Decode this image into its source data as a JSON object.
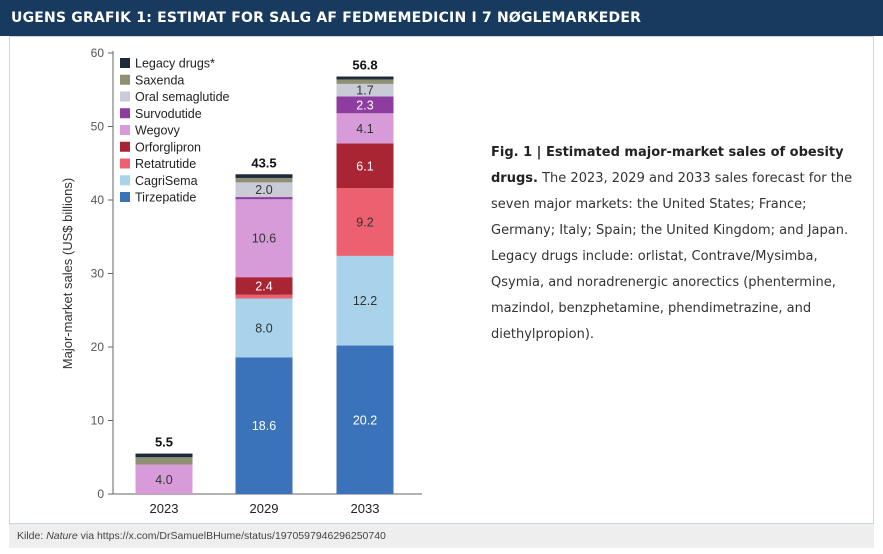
{
  "header": {
    "title": "UGENS GRAFIK 1: ESTIMAT FOR SALG AF FEDMEMEDICIN I 7 NØGLEMARKEDER"
  },
  "caption": {
    "title": "Fig. 1 | Estimated major-market sales of obesity drugs.",
    "body": "The 2023, 2029 and 2033 sales forecast for the seven major markets: the United States; France; Germany; Italy; Spain; the United Kingdom; and Japan. Legacy drugs include: orlistat, Contrave/Mysimba, Qsymia, and noradrenergic anorectics (phentermine, mazindol, benzphetamine, phendimetrazine, and diethylpropion)."
  },
  "footer": {
    "prefix": "Kilde:",
    "source": "Nature",
    "suffix": "via https://x.com/DrSamuelBHume/status/1970597946296250740"
  },
  "chart_data": {
    "type": "bar",
    "stacked": true,
    "title": "",
    "xlabel": "",
    "ylabel": "Major-market sales (US$ billions)",
    "ylim": [
      0,
      60
    ],
    "yticks": [
      0,
      10,
      20,
      30,
      40,
      50,
      60
    ],
    "grid": false,
    "legend_position": "top-left",
    "categories": [
      "2023",
      "2029",
      "2033"
    ],
    "totals": [
      5.5,
      43.5,
      56.8
    ],
    "total_labels": [
      "5.5",
      "43.5",
      "56.8"
    ],
    "series": [
      {
        "name": "Tirzepatide",
        "color": "#3a73b9",
        "label_color": "#ffffff",
        "values": [
          0.0,
          18.6,
          20.2
        ],
        "labels": [
          "",
          "18.6",
          "20.2"
        ]
      },
      {
        "name": "CagriSema",
        "color": "#a8d3ea",
        "label_color": "#333333",
        "values": [
          0.0,
          8.0,
          12.2
        ],
        "labels": [
          "",
          "8.0",
          "12.2"
        ]
      },
      {
        "name": "Retatrutide",
        "color": "#ec6070",
        "label_color": "#333333",
        "values": [
          0.0,
          0.5,
          9.2
        ],
        "labels": [
          "",
          "",
          "9.2"
        ]
      },
      {
        "name": "Orforglipron",
        "color": "#a92534",
        "label_color": "#ffffff",
        "values": [
          0.0,
          2.4,
          6.1
        ],
        "labels": [
          "",
          "2.4",
          "6.1"
        ]
      },
      {
        "name": "Wegovy",
        "color": "#d79bd9",
        "label_color": "#333333",
        "values": [
          4.0,
          10.6,
          4.1
        ],
        "labels": [
          "4.0",
          "10.6",
          "4.1"
        ]
      },
      {
        "name": "Survodutide",
        "color": "#8e3ca0",
        "label_color": "#ffffff",
        "values": [
          0.0,
          0.3,
          2.3
        ],
        "labels": [
          "",
          "",
          "2.3"
        ]
      },
      {
        "name": "Oral semaglutide",
        "color": "#c9cbd7",
        "label_color": "#333333",
        "values": [
          0.0,
          2.0,
          1.7
        ],
        "labels": [
          "",
          "2.0",
          "1.7"
        ]
      },
      {
        "name": "Saxenda",
        "color": "#8e8f73",
        "label_color": "#ffffff",
        "values": [
          1.0,
          0.6,
          0.6
        ],
        "labels": [
          "",
          "",
          ""
        ]
      },
      {
        "name": "Legacy drugs*",
        "color": "#1c2a3a",
        "label_color": "#ffffff",
        "values": [
          0.5,
          0.5,
          0.4
        ],
        "labels": [
          "",
          "",
          ""
        ]
      }
    ]
  }
}
